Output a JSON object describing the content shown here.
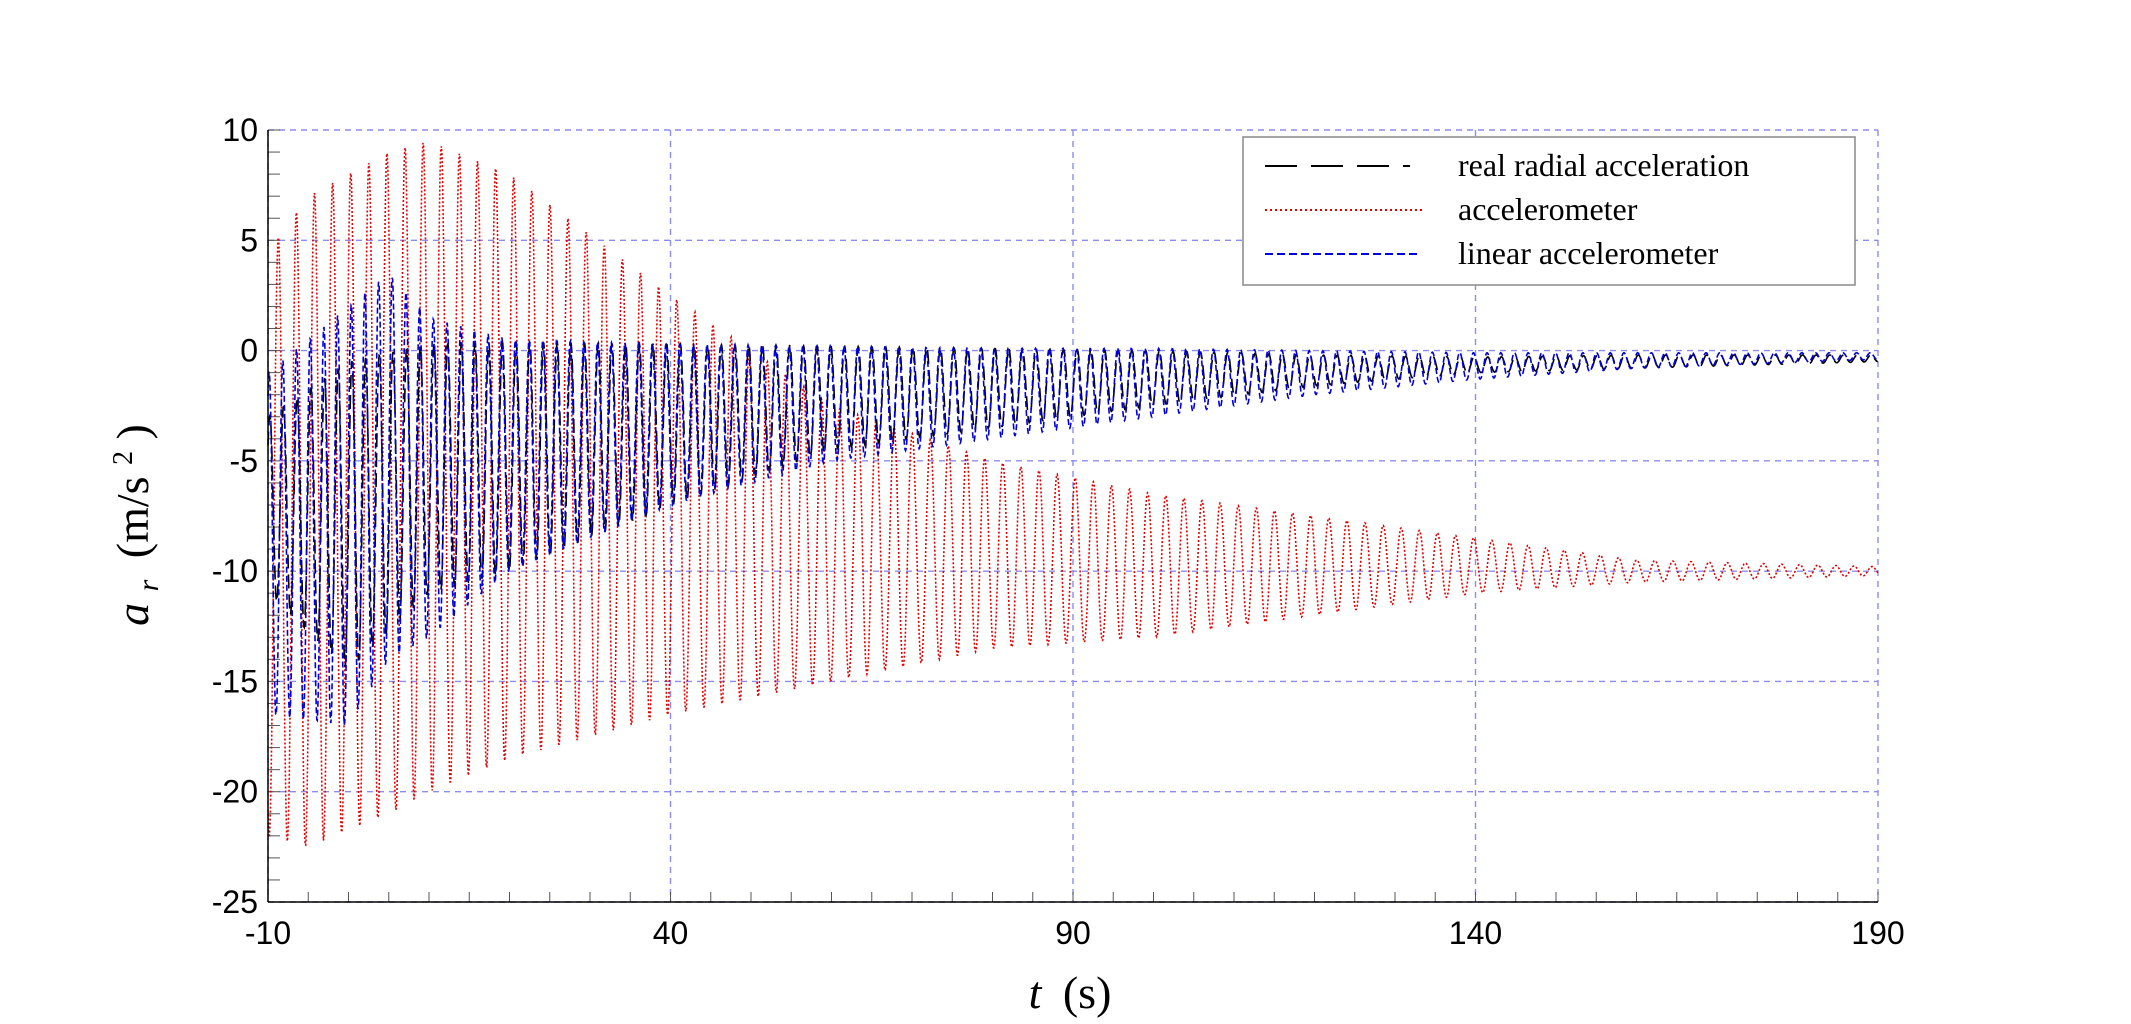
{
  "chart_data": {
    "type": "line",
    "title": "",
    "xlabel_var": "t",
    "xlabel_unit": "(s)",
    "ylabel_var": "a",
    "ylabel_sub": "r",
    "ylabel_unit_prefix": "(m/s",
    "ylabel_unit_sup": "2",
    "ylabel_unit_suffix": ")",
    "xlim": [
      -10,
      190
    ],
    "ylim": [
      -25,
      10
    ],
    "x_ticks": [
      -10,
      40,
      90,
      140,
      190
    ],
    "x_tick_labels": [
      "-10",
      "40",
      "90",
      "140",
      "190"
    ],
    "y_ticks": [
      10,
      5,
      0,
      -5,
      -10,
      -15,
      -20,
      -25
    ],
    "y_tick_labels": [
      "10",
      "5",
      "0",
      "-5",
      "-10",
      "-15",
      "-20",
      "-25"
    ],
    "grid": true,
    "legend_position": "top-right",
    "series": [
      {
        "name": "real radial acceleration",
        "color": "#000000",
        "style": "dashed",
        "envelope_t": [
          -10,
          0,
          10,
          20,
          40,
          60,
          80,
          100,
          120,
          140,
          160,
          190
        ],
        "envelope_max": [
          -3,
          -0.5,
          0.3,
          0.4,
          0.3,
          0.2,
          0.1,
          0,
          -0.2,
          -0.3,
          -0.2,
          -0.2
        ],
        "envelope_min": [
          -11,
          -14.5,
          -11,
          -10,
          -7,
          -4.5,
          -3.5,
          -2.5,
          -1.6,
          -1,
          -0.8,
          -0.5
        ]
      },
      {
        "name": "accelerometer",
        "color": "#e00000",
        "style": "dotted",
        "envelope_t": [
          -10,
          -5,
          5,
          10,
          20,
          40,
          60,
          80,
          100,
          120,
          140,
          160,
          190
        ],
        "envelope_max": [
          4.5,
          7,
          9,
          9.5,
          8,
          2.5,
          -2.5,
          -5,
          -6.5,
          -7.5,
          -8.5,
          -9.5,
          -9.8
        ],
        "envelope_min": [
          -22,
          -22.5,
          -21,
          -20,
          -18.5,
          -16.5,
          -15,
          -13.5,
          -13,
          -12,
          -11,
          -10.5,
          -10.2
        ]
      },
      {
        "name": "linear accelerometer",
        "color": "#0000dd",
        "style": "dashed-short",
        "envelope_t": [
          -10,
          0,
          5,
          10,
          20,
          40,
          60,
          80,
          100,
          120,
          140,
          160,
          190
        ],
        "envelope_max": [
          -1,
          2,
          3.5,
          1.5,
          0.5,
          0.3,
          0.2,
          0.1,
          0.1,
          0,
          -0.1,
          -0.1,
          -0.1
        ],
        "envelope_min": [
          -16.5,
          -17,
          -14,
          -13,
          -10,
          -7,
          -5,
          -4,
          -3,
          -2,
          -1.3,
          -0.8,
          -0.4
        ]
      }
    ]
  },
  "colors": {
    "grid": "#8c8cf0",
    "axis": "#000000"
  }
}
